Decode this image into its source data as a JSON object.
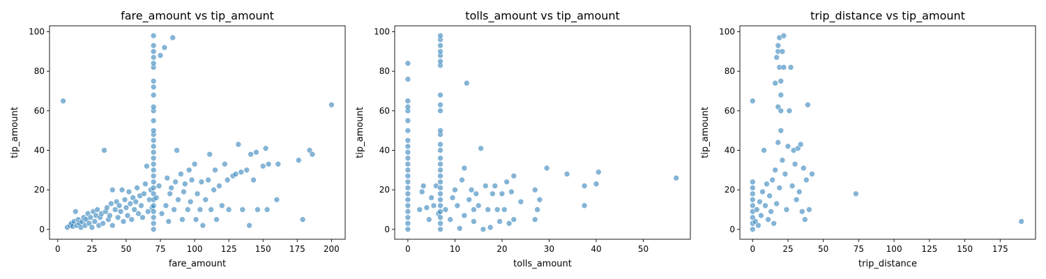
{
  "chart_data": [
    {
      "type": "scatter",
      "title": "fare_amount vs tip_amount",
      "xlabel": "fare_amount",
      "ylabel": "tip_amount",
      "xlim": [
        -6,
        210
      ],
      "ylim": [
        -5,
        103
      ],
      "xticks": [
        0,
        25,
        50,
        75,
        100,
        125,
        150,
        175,
        200
      ],
      "yticks": [
        0,
        20,
        40,
        60,
        80,
        100
      ],
      "grid": false,
      "points": [
        [
          4,
          65
        ],
        [
          7,
          1
        ],
        [
          9,
          2
        ],
        [
          10,
          3
        ],
        [
          11,
          1.5
        ],
        [
          12,
          4
        ],
        [
          13,
          9
        ],
        [
          14,
          2
        ],
        [
          15,
          5
        ],
        [
          16,
          3
        ],
        [
          17,
          1
        ],
        [
          18,
          4
        ],
        [
          19,
          6
        ],
        [
          20,
          2
        ],
        [
          21,
          5
        ],
        [
          22,
          8
        ],
        [
          23,
          3
        ],
        [
          24,
          6
        ],
        [
          25,
          1
        ],
        [
          26,
          9
        ],
        [
          27,
          4
        ],
        [
          28,
          7
        ],
        [
          29,
          10
        ],
        [
          30,
          2
        ],
        [
          31,
          6
        ],
        [
          32,
          8
        ],
        [
          33,
          3
        ],
        [
          34,
          40
        ],
        [
          35,
          9
        ],
        [
          36,
          11
        ],
        [
          37,
          5
        ],
        [
          38,
          7
        ],
        [
          39,
          13
        ],
        [
          40,
          2
        ],
        [
          40,
          20
        ],
        [
          42,
          10
        ],
        [
          43,
          14
        ],
        [
          44,
          6
        ],
        [
          45,
          12
        ],
        [
          46,
          9
        ],
        [
          47,
          20
        ],
        [
          48,
          4
        ],
        [
          49,
          15
        ],
        [
          50,
          11
        ],
        [
          51,
          7
        ],
        [
          52,
          19
        ],
        [
          53,
          13
        ],
        [
          54,
          5
        ],
        [
          55,
          16
        ],
        [
          56,
          10
        ],
        [
          57,
          14
        ],
        [
          58,
          21
        ],
        [
          59,
          8
        ],
        [
          60,
          17
        ],
        [
          61,
          12
        ],
        [
          62,
          6
        ],
        [
          63,
          18
        ],
        [
          64,
          23
        ],
        [
          65,
          32
        ],
        [
          66,
          9
        ],
        [
          67,
          15
        ],
        [
          68,
          20
        ],
        [
          69,
          11
        ],
        [
          70,
          0
        ],
        [
          70,
          3
        ],
        [
          70,
          6
        ],
        [
          70,
          9
        ],
        [
          70,
          12
        ],
        [
          70,
          15
        ],
        [
          70,
          18
        ],
        [
          70,
          21
        ],
        [
          70,
          24
        ],
        [
          70,
          27
        ],
        [
          70,
          30
        ],
        [
          70,
          33
        ],
        [
          70,
          36
        ],
        [
          70,
          39
        ],
        [
          70,
          42
        ],
        [
          70,
          45
        ],
        [
          70,
          48
        ],
        [
          70,
          50
        ],
        [
          70,
          55
        ],
        [
          70,
          60
        ],
        [
          70,
          62
        ],
        [
          70,
          68
        ],
        [
          70,
          72
        ],
        [
          70,
          75
        ],
        [
          70,
          82
        ],
        [
          70,
          84
        ],
        [
          70,
          87
        ],
        [
          70,
          90
        ],
        [
          70,
          93
        ],
        [
          70,
          98
        ],
        [
          72,
          16
        ],
        [
          74,
          22
        ],
        [
          75,
          88
        ],
        [
          76,
          8
        ],
        [
          78,
          92
        ],
        [
          79,
          12
        ],
        [
          80,
          26
        ],
        [
          81,
          4
        ],
        [
          82,
          18
        ],
        [
          83,
          21
        ],
        [
          84,
          97
        ],
        [
          85,
          10
        ],
        [
          86,
          24
        ],
        [
          87,
          40
        ],
        [
          88,
          15
        ],
        [
          90,
          28
        ],
        [
          91,
          5
        ],
        [
          92,
          19
        ],
        [
          93,
          23
        ],
        [
          95,
          10
        ],
        [
          96,
          30
        ],
        [
          97,
          14
        ],
        [
          98,
          25
        ],
        [
          100,
          33
        ],
        [
          101,
          5
        ],
        [
          102,
          18
        ],
        [
          104,
          10
        ],
        [
          105,
          24
        ],
        [
          106,
          2
        ],
        [
          108,
          15
        ],
        [
          110,
          25
        ],
        [
          111,
          38
        ],
        [
          112,
          10
        ],
        [
          114,
          20
        ],
        [
          115,
          30
        ],
        [
          116,
          5
        ],
        [
          118,
          22
        ],
        [
          120,
          12
        ],
        [
          122,
          33
        ],
        [
          124,
          25
        ],
        [
          125,
          10
        ],
        [
          128,
          27
        ],
        [
          130,
          28
        ],
        [
          132,
          43
        ],
        [
          134,
          29
        ],
        [
          135,
          10
        ],
        [
          138,
          30
        ],
        [
          140,
          2
        ],
        [
          141,
          38
        ],
        [
          143,
          25
        ],
        [
          145,
          39
        ],
        [
          146,
          10
        ],
        [
          150,
          32
        ],
        [
          152,
          41
        ],
        [
          153,
          10
        ],
        [
          154,
          33
        ],
        [
          160,
          15
        ],
        [
          161,
          33
        ],
        [
          176,
          35
        ],
        [
          179,
          5
        ],
        [
          184,
          40
        ],
        [
          186,
          38
        ],
        [
          200,
          63
        ]
      ]
    },
    {
      "type": "scatter",
      "title": "tolls_amount vs tip_amount",
      "xlabel": "tolls_amount",
      "ylabel": "tip_amount",
      "xlim": [
        -2.8,
        60
      ],
      "ylim": [
        -5,
        103
      ],
      "xticks": [
        0,
        10,
        20,
        30,
        40,
        50
      ],
      "yticks": [
        0,
        20,
        40,
        60,
        80,
        100
      ],
      "grid": false,
      "points": [
        [
          0,
          0
        ],
        [
          0,
          3
        ],
        [
          0,
          6
        ],
        [
          0,
          9
        ],
        [
          0,
          12
        ],
        [
          0,
          15
        ],
        [
          0,
          18
        ],
        [
          0,
          21
        ],
        [
          0,
          24
        ],
        [
          0,
          27
        ],
        [
          0,
          30
        ],
        [
          0,
          33
        ],
        [
          0,
          36
        ],
        [
          0,
          39
        ],
        [
          0,
          42
        ],
        [
          0,
          45
        ],
        [
          0,
          50
        ],
        [
          0,
          55
        ],
        [
          0,
          60
        ],
        [
          0,
          62
        ],
        [
          0,
          65
        ],
        [
          0,
          76
        ],
        [
          0,
          84
        ],
        [
          2.5,
          10
        ],
        [
          3,
          19
        ],
        [
          3.3,
          22
        ],
        [
          4,
          11
        ],
        [
          4.5,
          5
        ],
        [
          5,
          16
        ],
        [
          5.5,
          12
        ],
        [
          6,
          22
        ],
        [
          6.5,
          8
        ],
        [
          6.9,
          0
        ],
        [
          6.9,
          3
        ],
        [
          6.9,
          6
        ],
        [
          6.9,
          9
        ],
        [
          6.9,
          12
        ],
        [
          6.9,
          15
        ],
        [
          6.9,
          18
        ],
        [
          6.9,
          21
        ],
        [
          6.9,
          24
        ],
        [
          6.9,
          27
        ],
        [
          6.9,
          30
        ],
        [
          6.9,
          33
        ],
        [
          6.9,
          36
        ],
        [
          6.9,
          40
        ],
        [
          6.9,
          43
        ],
        [
          6.9,
          48
        ],
        [
          6.9,
          50
        ],
        [
          6.9,
          60
        ],
        [
          6.9,
          63
        ],
        [
          6.9,
          68
        ],
        [
          6.9,
          83
        ],
        [
          6.9,
          85
        ],
        [
          6.9,
          88
        ],
        [
          6.9,
          90
        ],
        [
          6.9,
          93
        ],
        [
          6.9,
          96
        ],
        [
          6.9,
          98
        ],
        [
          8,
          10
        ],
        [
          9,
          5
        ],
        [
          9.5,
          16
        ],
        [
          10,
          20
        ],
        [
          10.5,
          12
        ],
        [
          11,
          0.5
        ],
        [
          11.5,
          25
        ],
        [
          12,
          7
        ],
        [
          12,
          31
        ],
        [
          12.5,
          74
        ],
        [
          13,
          15
        ],
        [
          13.5,
          20
        ],
        [
          14,
          10
        ],
        [
          14,
          4
        ],
        [
          14.5,
          18
        ],
        [
          15,
          12
        ],
        [
          15.5,
          41
        ],
        [
          16,
          0
        ],
        [
          16.5,
          22
        ],
        [
          17,
          10
        ],
        [
          17.5,
          1
        ],
        [
          18,
          18
        ],
        [
          18.5,
          22
        ],
        [
          19,
          10
        ],
        [
          19.5,
          4
        ],
        [
          20,
          18
        ],
        [
          20.5,
          10
        ],
        [
          21,
          24
        ],
        [
          21.5,
          3
        ],
        [
          22,
          19
        ],
        [
          22.5,
          27
        ],
        [
          22.5,
          5
        ],
        [
          24,
          14
        ],
        [
          27,
          20
        ],
        [
          27,
          5
        ],
        [
          27.5,
          10
        ],
        [
          28,
          15
        ],
        [
          29.5,
          31
        ],
        [
          33.8,
          28
        ],
        [
          37.5,
          12
        ],
        [
          37.5,
          22
        ],
        [
          40,
          23
        ],
        [
          40.5,
          29
        ],
        [
          57,
          26
        ]
      ]
    },
    {
      "type": "scatter",
      "title": "trip_distance vs tip_amount",
      "xlabel": "trip_distance",
      "ylabel": "tip_amount",
      "xlim": [
        -9,
        200
      ],
      "ylim": [
        -5,
        103
      ],
      "xticks": [
        0,
        25,
        50,
        75,
        100,
        125,
        150,
        175
      ],
      "yticks": [
        0,
        20,
        40,
        60,
        80,
        100
      ],
      "grid": false,
      "points": [
        [
          0,
          0
        ],
        [
          0,
          3
        ],
        [
          0,
          6
        ],
        [
          0,
          9
        ],
        [
          0,
          12
        ],
        [
          0,
          15
        ],
        [
          0,
          18
        ],
        [
          0,
          21
        ],
        [
          0,
          24
        ],
        [
          0,
          65
        ],
        [
          2,
          4
        ],
        [
          3,
          10
        ],
        [
          4,
          2
        ],
        [
          5,
          14
        ],
        [
          6,
          7
        ],
        [
          7,
          19
        ],
        [
          8,
          40
        ],
        [
          9,
          12
        ],
        [
          10,
          23
        ],
        [
          11,
          5
        ],
        [
          12,
          17
        ],
        [
          13,
          9
        ],
        [
          14,
          25
        ],
        [
          15,
          3
        ],
        [
          16,
          30
        ],
        [
          16,
          74
        ],
        [
          17,
          13
        ],
        [
          17,
          87
        ],
        [
          18,
          44
        ],
        [
          18,
          90
        ],
        [
          18,
          93
        ],
        [
          18,
          62
        ],
        [
          19,
          21
        ],
        [
          19,
          82
        ],
        [
          19,
          97
        ],
        [
          20,
          50
        ],
        [
          20,
          68
        ],
        [
          20,
          60
        ],
        [
          20,
          75
        ],
        [
          21,
          35
        ],
        [
          21,
          90
        ],
        [
          22,
          98
        ],
        [
          22,
          82
        ],
        [
          23,
          28
        ],
        [
          24,
          10
        ],
        [
          25,
          42
        ],
        [
          26,
          60
        ],
        [
          27,
          82
        ],
        [
          28,
          22
        ],
        [
          29,
          40
        ],
        [
          30,
          33
        ],
        [
          31,
          15
        ],
        [
          32,
          41
        ],
        [
          33,
          19
        ],
        [
          34,
          43
        ],
        [
          35,
          9
        ],
        [
          36,
          31
        ],
        [
          37,
          5
        ],
        [
          38,
          25
        ],
        [
          39,
          63
        ],
        [
          40,
          10
        ],
        [
          42,
          28
        ],
        [
          73,
          18
        ],
        [
          190,
          4
        ]
      ]
    }
  ]
}
